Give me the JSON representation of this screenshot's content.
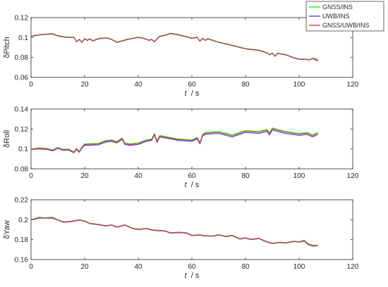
{
  "chart_data": [
    {
      "type": "line",
      "ylabel": "δPitch",
      "xlabel_var": "t",
      "xlabel_unit": "/ s",
      "xlim": [
        0,
        120
      ],
      "ylim": [
        0.06,
        0.12
      ],
      "xticks": [
        "0",
        "20",
        "40",
        "60",
        "80",
        "100",
        "120"
      ],
      "yticks": [
        "0.06",
        "0.08",
        "0.1",
        "0.12"
      ],
      "grid": false,
      "legend": "top-right",
      "series": [
        {
          "name": "GNSS/INS",
          "color": "#00ff00",
          "x": [
            0,
            2,
            5,
            8,
            10,
            13,
            16,
            17,
            18,
            19,
            20,
            21,
            22,
            23,
            25,
            28,
            30,
            32,
            34,
            36,
            38,
            40,
            42,
            44,
            45,
            46,
            47,
            48,
            50,
            52,
            55,
            58,
            60,
            62,
            63,
            64,
            65,
            66,
            70,
            75,
            80,
            85,
            88,
            89,
            90,
            91,
            92,
            95,
            98,
            100,
            102,
            104,
            105,
            107
          ],
          "y": [
            0.1015,
            0.1025,
            0.1035,
            0.104,
            0.102,
            0.1005,
            0.1005,
            0.096,
            0.0985,
            0.0955,
            0.099,
            0.0975,
            0.099,
            0.097,
            0.099,
            0.1,
            0.0985,
            0.0955,
            0.097,
            0.0985,
            0.0995,
            0.1005,
            0.0995,
            0.0975,
            0.0985,
            0.096,
            0.099,
            0.1015,
            0.1025,
            0.1045,
            0.103,
            0.101,
            0.0995,
            0.1005,
            0.0965,
            0.0995,
            0.0975,
            0.099,
            0.0955,
            0.0925,
            0.089,
            0.0875,
            0.085,
            0.083,
            0.0845,
            0.0815,
            0.0845,
            0.083,
            0.08,
            0.0785,
            0.0785,
            0.078,
            0.0795,
            0.078
          ]
        },
        {
          "name": "UWB/INS",
          "color": "#4b3bd6",
          "x": [
            0,
            2,
            5,
            8,
            10,
            13,
            16,
            17,
            18,
            19,
            20,
            21,
            22,
            23,
            25,
            28,
            30,
            32,
            34,
            36,
            38,
            40,
            42,
            44,
            45,
            46,
            47,
            48,
            50,
            52,
            55,
            58,
            60,
            62,
            63,
            64,
            65,
            66,
            70,
            75,
            80,
            85,
            88,
            89,
            90,
            91,
            92,
            95,
            98,
            100,
            102,
            104,
            105,
            107
          ],
          "y": [
            0.101,
            0.102,
            0.103,
            0.1035,
            0.1015,
            0.1,
            0.1,
            0.0955,
            0.098,
            0.095,
            0.0985,
            0.097,
            0.0985,
            0.0965,
            0.0985,
            0.0995,
            0.098,
            0.095,
            0.0965,
            0.098,
            0.099,
            0.1,
            0.099,
            0.097,
            0.098,
            0.0955,
            0.0985,
            0.101,
            0.102,
            0.104,
            0.1025,
            0.1005,
            0.099,
            0.1,
            0.096,
            0.099,
            0.097,
            0.0985,
            0.095,
            0.092,
            0.0885,
            0.087,
            0.0845,
            0.0825,
            0.084,
            0.081,
            0.084,
            0.0825,
            0.0795,
            0.078,
            0.078,
            0.0775,
            0.079,
            0.0765
          ]
        },
        {
          "name": "GNSS/UWB/INS",
          "color": "#e8304a",
          "x": [
            0,
            2,
            5,
            8,
            10,
            13,
            16,
            17,
            18,
            19,
            20,
            21,
            22,
            23,
            25,
            28,
            30,
            32,
            34,
            36,
            38,
            40,
            42,
            44,
            45,
            46,
            47,
            48,
            50,
            52,
            55,
            58,
            60,
            62,
            63,
            64,
            65,
            66,
            70,
            75,
            80,
            85,
            88,
            89,
            90,
            91,
            92,
            95,
            98,
            100,
            102,
            104,
            105,
            107
          ],
          "y": [
            0.1012,
            0.1022,
            0.1032,
            0.1038,
            0.1018,
            0.1002,
            0.1002,
            0.0957,
            0.0982,
            0.0952,
            0.0987,
            0.0972,
            0.0987,
            0.0967,
            0.0987,
            0.0997,
            0.0982,
            0.0952,
            0.0967,
            0.0982,
            0.0992,
            0.1002,
            0.0992,
            0.0972,
            0.0982,
            0.0957,
            0.0987,
            0.1012,
            0.1022,
            0.1042,
            0.1027,
            0.1007,
            0.0992,
            0.1002,
            0.0962,
            0.0992,
            0.0972,
            0.0987,
            0.0952,
            0.0922,
            0.0887,
            0.0872,
            0.0847,
            0.0827,
            0.0842,
            0.0812,
            0.0842,
            0.0827,
            0.0797,
            0.0782,
            0.0782,
            0.0777,
            0.0792,
            0.0772
          ]
        }
      ]
    },
    {
      "type": "line",
      "ylabel": "δRoll",
      "xlabel_var": "t",
      "xlabel_unit": "/ s",
      "xlim": [
        0,
        120
      ],
      "ylim": [
        0.08,
        0.14
      ],
      "xticks": [
        "0",
        "20",
        "40",
        "60",
        "80",
        "100",
        "120"
      ],
      "yticks": [
        "0.08",
        "0.1",
        "0.12",
        "0.14"
      ],
      "grid": false,
      "series": [
        {
          "name": "GNSS/INS",
          "color": "#00ff00",
          "x": [
            0,
            3,
            6,
            8,
            10,
            12,
            14,
            16,
            17,
            18,
            19,
            20,
            25,
            28,
            30,
            32,
            34,
            35,
            37,
            40,
            43,
            45,
            46,
            47,
            48,
            50,
            55,
            60,
            62,
            63,
            64,
            65,
            70,
            75,
            80,
            85,
            88,
            89,
            90,
            95,
            100,
            103,
            105,
            107
          ],
          "y": [
            0.1,
            0.101,
            0.1005,
            0.099,
            0.1015,
            0.0995,
            0.1,
            0.097,
            0.1005,
            0.0975,
            0.102,
            0.105,
            0.1055,
            0.1085,
            0.109,
            0.1075,
            0.111,
            0.106,
            0.105,
            0.106,
            0.109,
            0.11,
            0.1155,
            0.108,
            0.1135,
            0.1125,
            0.11,
            0.109,
            0.1115,
            0.1065,
            0.1145,
            0.1165,
            0.1175,
            0.114,
            0.1185,
            0.1175,
            0.1195,
            0.116,
            0.121,
            0.1175,
            0.1155,
            0.1165,
            0.114,
            0.1165
          ]
        },
        {
          "name": "UWB/INS",
          "color": "#4b3bd6",
          "x": [
            0,
            3,
            6,
            8,
            10,
            12,
            14,
            16,
            17,
            18,
            19,
            20,
            25,
            28,
            30,
            32,
            34,
            35,
            37,
            40,
            43,
            45,
            46,
            47,
            48,
            50,
            55,
            60,
            62,
            63,
            64,
            65,
            70,
            75,
            80,
            85,
            88,
            89,
            90,
            95,
            100,
            103,
            105,
            107
          ],
          "y": [
            0.0995,
            0.1,
            0.0995,
            0.098,
            0.1005,
            0.0985,
            0.099,
            0.096,
            0.0995,
            0.0965,
            0.101,
            0.1035,
            0.104,
            0.107,
            0.1075,
            0.106,
            0.1095,
            0.1045,
            0.1035,
            0.1045,
            0.1075,
            0.1085,
            0.114,
            0.1065,
            0.112,
            0.111,
            0.1085,
            0.1075,
            0.11,
            0.105,
            0.113,
            0.1145,
            0.1155,
            0.112,
            0.1165,
            0.1155,
            0.1175,
            0.114,
            0.119,
            0.1155,
            0.1135,
            0.1145,
            0.112,
            0.1145
          ]
        },
        {
          "name": "GNSS/UWB/INS",
          "color": "#e8304a",
          "x": [
            0,
            3,
            6,
            8,
            10,
            12,
            14,
            16,
            17,
            18,
            19,
            20,
            25,
            28,
            30,
            32,
            34,
            35,
            37,
            40,
            43,
            45,
            46,
            47,
            48,
            50,
            55,
            60,
            62,
            63,
            64,
            65,
            70,
            75,
            80,
            85,
            88,
            89,
            90,
            95,
            100,
            103,
            105,
            107
          ],
          "y": [
            0.0998,
            0.1006,
            0.1001,
            0.0986,
            0.1011,
            0.0991,
            0.0996,
            0.0966,
            0.1001,
            0.0971,
            0.1016,
            0.1044,
            0.1049,
            0.1079,
            0.1084,
            0.1069,
            0.1104,
            0.1054,
            0.1044,
            0.1054,
            0.1084,
            0.1094,
            0.1149,
            0.1074,
            0.1129,
            0.1119,
            0.1094,
            0.1084,
            0.1109,
            0.1059,
            0.1139,
            0.1157,
            0.1167,
            0.1132,
            0.1177,
            0.1167,
            0.1187,
            0.1152,
            0.1202,
            0.1167,
            0.1147,
            0.1157,
            0.1132,
            0.1157
          ]
        }
      ]
    },
    {
      "type": "line",
      "ylabel": "δYaw",
      "xlabel_var": "t",
      "xlabel_unit": "/ s",
      "xlim": [
        0,
        120
      ],
      "ylim": [
        0.16,
        0.22
      ],
      "xticks": [
        "0",
        "20",
        "40",
        "60",
        "80",
        "100",
        "120"
      ],
      "yticks": [
        "0.16",
        "0.18",
        "0.2",
        "0.22"
      ],
      "grid": false,
      "series": [
        {
          "name": "GNSS/INS",
          "color": "#00ff00",
          "x": [
            0,
            3,
            5,
            8,
            10,
            12,
            15,
            18,
            19,
            20,
            22,
            25,
            28,
            30,
            32,
            35,
            38,
            40,
            43,
            45,
            47,
            50,
            52,
            55,
            58,
            60,
            63,
            65,
            68,
            70,
            73,
            75,
            78,
            80,
            82,
            85,
            88,
            90,
            93,
            95,
            98,
            100,
            102,
            103,
            105,
            107
          ],
          "y": [
            0.2,
            0.2025,
            0.202,
            0.2025,
            0.2,
            0.198,
            0.1985,
            0.2,
            0.1995,
            0.199,
            0.1965,
            0.1955,
            0.194,
            0.195,
            0.193,
            0.195,
            0.1915,
            0.1905,
            0.1915,
            0.19,
            0.1895,
            0.189,
            0.187,
            0.1875,
            0.187,
            0.1845,
            0.185,
            0.184,
            0.184,
            0.185,
            0.1835,
            0.1845,
            0.181,
            0.182,
            0.1805,
            0.1815,
            0.178,
            0.1765,
            0.1775,
            0.177,
            0.1785,
            0.178,
            0.1795,
            0.1765,
            0.1745,
            0.1745
          ]
        },
        {
          "name": "UWB/INS",
          "color": "#4b3bd6",
          "x": [
            0,
            3,
            5,
            8,
            10,
            12,
            15,
            18,
            19,
            20,
            22,
            25,
            28,
            30,
            32,
            35,
            38,
            40,
            43,
            45,
            47,
            50,
            52,
            55,
            58,
            60,
            63,
            65,
            68,
            70,
            73,
            75,
            78,
            80,
            82,
            85,
            88,
            90,
            93,
            95,
            98,
            100,
            102,
            103,
            105,
            107
          ],
          "y": [
            0.1995,
            0.2015,
            0.2015,
            0.2015,
            0.1995,
            0.1975,
            0.198,
            0.1995,
            0.199,
            0.1985,
            0.196,
            0.195,
            0.1935,
            0.1945,
            0.1925,
            0.1945,
            0.191,
            0.19,
            0.191,
            0.1895,
            0.189,
            0.1885,
            0.1865,
            0.187,
            0.1865,
            0.184,
            0.1845,
            0.1835,
            0.1835,
            0.1845,
            0.183,
            0.184,
            0.1805,
            0.1815,
            0.18,
            0.181,
            0.1775,
            0.176,
            0.177,
            0.1765,
            0.178,
            0.1775,
            0.1785,
            0.1755,
            0.1735,
            0.174
          ]
        },
        {
          "name": "GNSS/UWB/INS",
          "color": "#e8304a",
          "x": [
            0,
            3,
            5,
            8,
            10,
            12,
            15,
            18,
            19,
            20,
            22,
            25,
            28,
            30,
            32,
            35,
            38,
            40,
            43,
            45,
            47,
            50,
            52,
            55,
            58,
            60,
            63,
            65,
            68,
            70,
            73,
            75,
            78,
            80,
            82,
            85,
            88,
            90,
            93,
            95,
            98,
            100,
            102,
            103,
            105,
            107
          ],
          "y": [
            0.1998,
            0.202,
            0.2018,
            0.202,
            0.1998,
            0.1978,
            0.1983,
            0.1998,
            0.1993,
            0.1988,
            0.1963,
            0.1953,
            0.1938,
            0.1948,
            0.1928,
            0.1948,
            0.1913,
            0.1903,
            0.1913,
            0.1898,
            0.1893,
            0.1888,
            0.1868,
            0.1873,
            0.1868,
            0.1843,
            0.1848,
            0.1838,
            0.1838,
            0.1848,
            0.1833,
            0.1843,
            0.1808,
            0.1818,
            0.1803,
            0.1813,
            0.1778,
            0.1763,
            0.1773,
            0.1768,
            0.1783,
            0.1778,
            0.179,
            0.176,
            0.174,
            0.1742
          ]
        }
      ]
    }
  ]
}
